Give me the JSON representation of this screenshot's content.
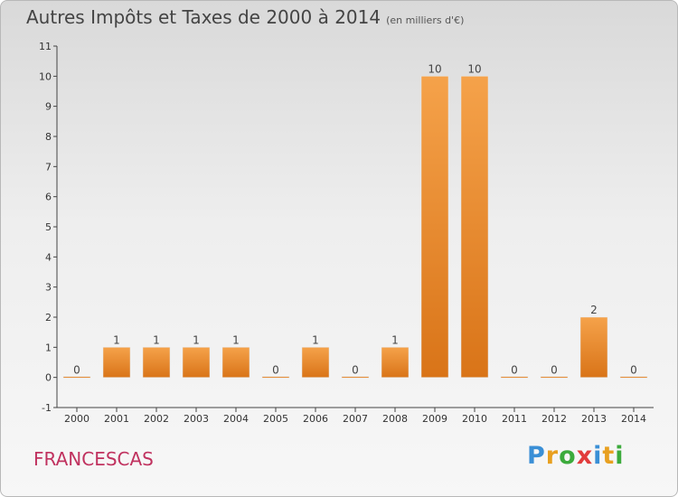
{
  "chart_data": {
    "type": "bar",
    "title": "Autres Impôts et Taxes de 2000 à 2014",
    "unit_note": "(en milliers d'€)",
    "categories": [
      "2000",
      "2001",
      "2002",
      "2003",
      "2004",
      "2005",
      "2006",
      "2007",
      "2008",
      "2009",
      "2010",
      "2011",
      "2012",
      "2013",
      "2014"
    ],
    "values": [
      0,
      1,
      1,
      1,
      1,
      0,
      1,
      0,
      1,
      10,
      10,
      0,
      0,
      2,
      0
    ],
    "value_labels": [
      "0",
      "1",
      "1",
      "1",
      "1",
      "0",
      "1",
      "0",
      "1",
      "10",
      "10",
      "0",
      "0",
      "2",
      "0"
    ],
    "y_ticks": [
      "-1",
      "0",
      "1",
      "2",
      "3",
      "4",
      "5",
      "6",
      "7",
      "8",
      "9",
      "10",
      "11"
    ],
    "ylim": [
      -1,
      11
    ],
    "grid": false,
    "bar_color": "#f0902e",
    "xlabel": "",
    "ylabel": ""
  },
  "commune": "FRANCESCAS",
  "logo": {
    "letters": [
      "P",
      "r",
      "o",
      "x",
      "i",
      "t",
      "i"
    ],
    "colors": [
      "#3a8fd6",
      "#e8a020",
      "#3cab3c",
      "#e23b3b",
      "#3a8fd6",
      "#e8a020",
      "#3cab3c"
    ]
  }
}
